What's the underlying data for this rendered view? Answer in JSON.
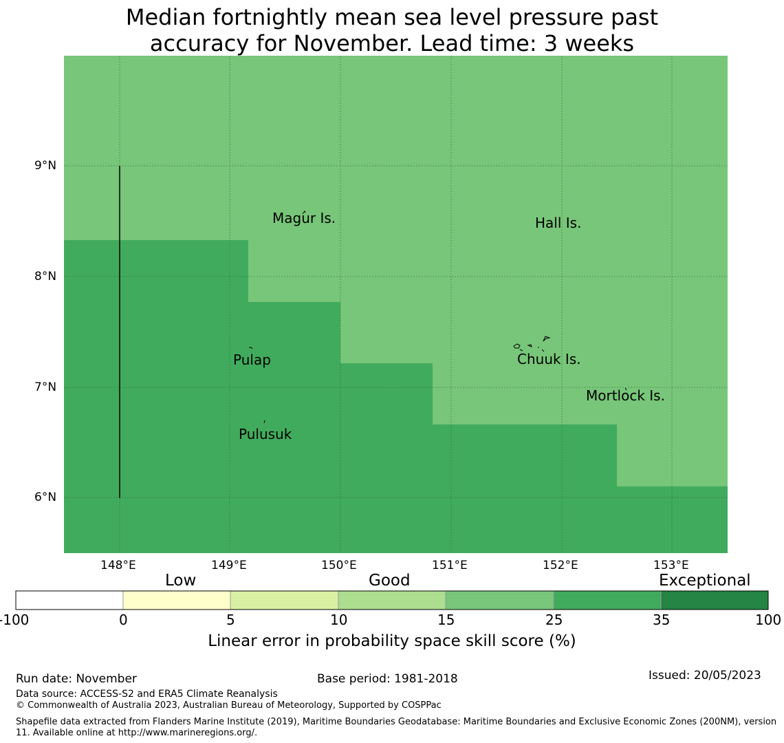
{
  "title_line1": "Median fortnightly mean sea level pressure past",
  "title_line2": "accuracy for November. Lead time: 3 weeks",
  "map": {
    "lat_labels": [
      "9°N",
      "8°N",
      "7°N",
      "6°N"
    ],
    "lon_labels": [
      "148°E",
      "149°E",
      "150°E",
      "151°E",
      "152°E",
      "153°E"
    ],
    "places": [
      "Magur Is.",
      "Hall Is.",
      "Pulap",
      "Chuuk Is.",
      "Mortlock Is.",
      "Pulusuk"
    ],
    "colors": {
      "light_green": "#78c679",
      "mid_green": "#41ab5d"
    }
  },
  "colorbar": {
    "categories": [
      "Low",
      "Good",
      "Exceptional"
    ],
    "ticks": [
      "-100",
      "0",
      "5",
      "10",
      "15",
      "25",
      "35",
      "100"
    ],
    "colors": [
      "#ffffff",
      "#ffffcc",
      "#d9f0a3",
      "#addd8e",
      "#78c679",
      "#41ab5d",
      "#238443"
    ],
    "label": "Linear error in probability space skill score (%)"
  },
  "footer": {
    "run_date": "Run date: November",
    "base_period": "Base period: 1981-2018",
    "issued": "Issued: 20/05/2023",
    "data_source": "Data source: ACCESS-S2 and ERA5 Climate Reanalysis",
    "copyright": "© Commonwealth of Australia 2023, Australian Bureau of Meteorology, Supported by COSPPac",
    "shapefile": "Shapefile data extracted from Flanders Marine Institute (2019), Maritime Boundaries Geodatabase: Maritime Boundaries and Exclusive Economic Zones (200NM), version 11. Available online at http://www.marineregions.org/."
  }
}
